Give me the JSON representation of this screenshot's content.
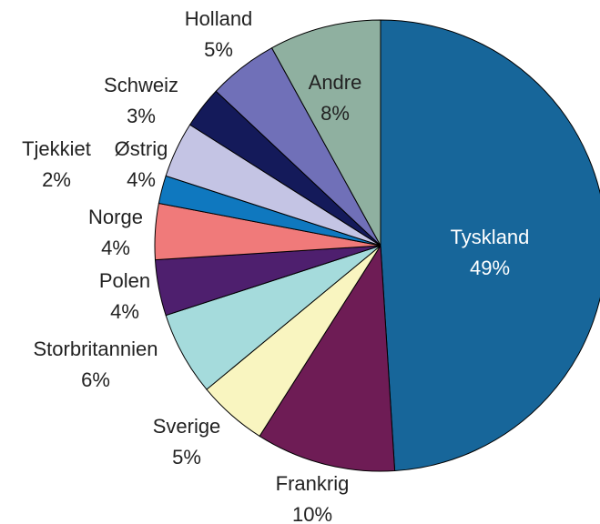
{
  "chart_data": {
    "type": "pie",
    "categories": [
      "Tyskland",
      "Frankrig",
      "Sverige",
      "Storbritannien",
      "Polen",
      "Norge",
      "Tjekkiet",
      "Østrig",
      "Schweiz",
      "Holland",
      "Andre"
    ],
    "values": [
      49,
      10,
      5,
      6,
      4,
      4,
      2,
      4,
      3,
      5,
      8
    ],
    "value_labels": [
      "49%",
      "10%",
      "5%",
      "6%",
      "4%",
      "4%",
      "2%",
      "4%",
      "3%",
      "5%",
      "8%"
    ],
    "colors": [
      "#17669a",
      "#6e1c55",
      "#f9f5c0",
      "#a5dbdc",
      "#4e1f6e",
      "#f07a7a",
      "#0f78bf",
      "#c4c4e4",
      "#141a5a",
      "#7070b8",
      "#8fb0a0"
    ]
  }
}
